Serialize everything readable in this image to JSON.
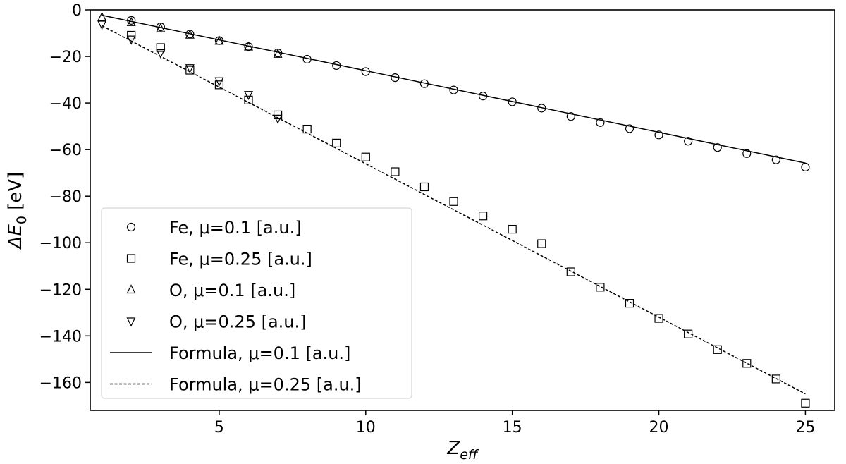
{
  "chart_data": {
    "type": "scatter",
    "xlabel": {
      "base": "Z",
      "sub": "eff"
    },
    "ylabel": {
      "base": "ΔE",
      "sub": "0",
      "unit": " [eV]"
    },
    "xlim": [
      0.6,
      26.0
    ],
    "ylim": [
      -172,
      0
    ],
    "xticks": [
      5,
      10,
      15,
      20,
      25
    ],
    "yticks": [
      0,
      -20,
      -40,
      -60,
      -80,
      -100,
      -120,
      -140,
      -160
    ],
    "tick_labels_x": [
      "5",
      "10",
      "15",
      "20",
      "25"
    ],
    "tick_labels_y": [
      "0",
      "−20",
      "−40",
      "−60",
      "−80",
      "−100",
      "−120",
      "−140",
      "−160"
    ],
    "grid": false,
    "legend_position": "bottom-left",
    "series": [
      {
        "name": "Fe, μ=0.1 [a.u.]",
        "marker": "circle",
        "x": [
          2,
          3,
          4,
          5,
          6,
          7,
          8,
          9,
          10,
          11,
          12,
          13,
          14,
          15,
          16,
          17,
          18,
          19,
          20,
          21,
          22,
          23,
          24,
          25
        ],
        "y": [
          -4.5,
          -7.3,
          -10.4,
          -13.2,
          -15.8,
          -18.5,
          -21.2,
          -23.9,
          -26.5,
          -29.1,
          -31.7,
          -34.4,
          -37.0,
          -39.5,
          -42.2,
          -45.8,
          -48.4,
          -51.0,
          -53.7,
          -56.4,
          -59.1,
          -61.7,
          -64.4,
          -67.5
        ]
      },
      {
        "name": "Fe, μ=0.25 [a.u.]",
        "marker": "square",
        "x": [
          2,
          3,
          4,
          5,
          6,
          7,
          8,
          9,
          10,
          11,
          12,
          13,
          14,
          15,
          16,
          17,
          18,
          19,
          20,
          21,
          22,
          23,
          24,
          25
        ],
        "y": [
          -10.9,
          -16.2,
          -25.9,
          -32.2,
          -38.7,
          -45.1,
          -51.2,
          -57.2,
          -63.2,
          -69.5,
          -76.0,
          -82.3,
          -88.5,
          -94.2,
          -100.4,
          -112.5,
          -119.1,
          -126.0,
          -132.5,
          -139.2,
          -145.9,
          -151.8,
          -158.5,
          -168.9
        ]
      },
      {
        "name": "O, μ=0.1 [a.u.]",
        "marker": "triangle-up",
        "x": [
          1,
          2,
          3,
          4,
          5,
          6,
          7
        ],
        "y": [
          -3.2,
          -5.4,
          -8.0,
          -10.8,
          -13.4,
          -15.9,
          -19.0
        ]
      },
      {
        "name": "O, μ=0.25 [a.u.]",
        "marker": "triangle-down",
        "x": [
          1,
          2,
          3,
          4,
          5,
          6,
          7
        ],
        "y": [
          -6.2,
          -12.6,
          -18.5,
          -24.9,
          -30.5,
          -36.4,
          -46.6
        ]
      },
      {
        "name": "Formula, μ=0.1 [a.u.]",
        "line": "solid",
        "x": [
          1,
          25
        ],
        "y": [
          -2.3,
          -65.8
        ]
      },
      {
        "name": "Formula, μ=0.25 [a.u.]",
        "line": "dashed",
        "x": [
          1,
          25
        ],
        "y": [
          -6.8,
          -164.9
        ]
      }
    ]
  }
}
